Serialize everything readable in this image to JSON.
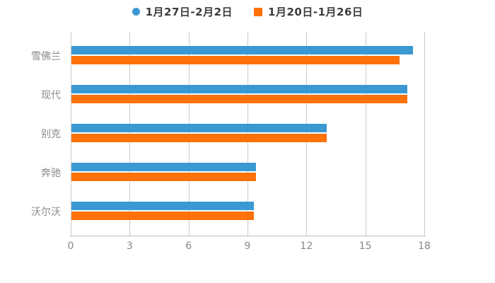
{
  "legend": {
    "items": [
      {
        "label": "1月27日-2月2日",
        "shape": "circle",
        "color": "#3a99d2"
      },
      {
        "label": "1月20日-1月26日",
        "shape": "square",
        "color": "#ff7109"
      }
    ]
  },
  "chart_data": {
    "type": "bar",
    "orientation": "horizontal",
    "title": "",
    "xlabel": "",
    "ylabel": "",
    "categories": [
      "雪佛兰",
      "现代",
      "别克",
      "奔驰",
      "沃尔沃"
    ],
    "series": [
      {
        "name": "1月27日-2月2日",
        "color": "#3a99d2",
        "values": [
          17.4,
          17.1,
          13.0,
          9.4,
          9.3
        ]
      },
      {
        "name": "1月20日-1月26日",
        "color": "#ff7109",
        "values": [
          16.7,
          17.1,
          13.0,
          9.4,
          9.3
        ]
      }
    ],
    "xlim": [
      0,
      18
    ],
    "xticks": [
      0,
      3,
      6,
      9,
      12,
      15,
      18
    ],
    "grid": true,
    "legend_position": "top-center",
    "colors": {
      "gridline": "#cccccc",
      "axis_line": "#bbbbbb",
      "tick_label": "#888888",
      "category_label": "#8a8a8a",
      "legend_text": "#3c3c3c",
      "background": "#ffffff"
    }
  }
}
